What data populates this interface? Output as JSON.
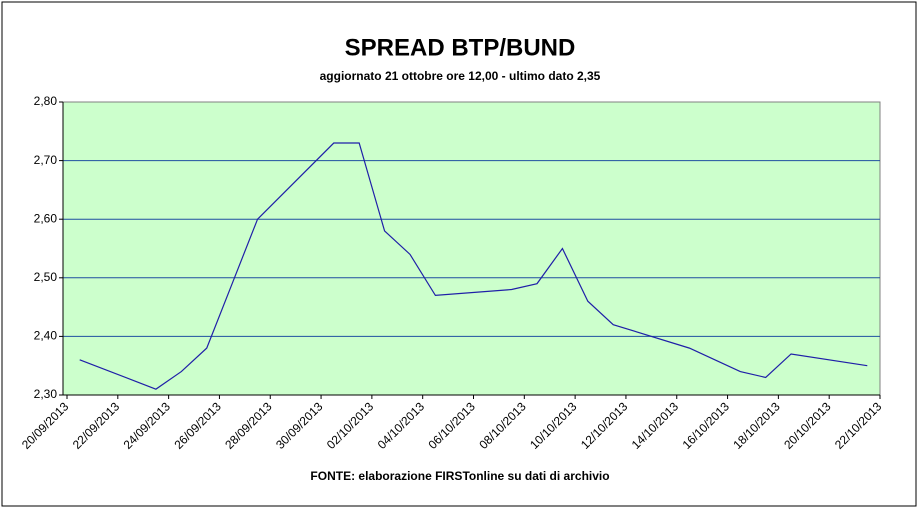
{
  "chart_data": {
    "type": "line",
    "title": "SPREAD BTP/BUND",
    "subtitle": "aggiornato 21 ottobre ore 12,00 - ultimo dato 2,35",
    "footer": "FONTE: elaborazione FIRSTonline su dati di archivio",
    "x": [
      "20/09/2013",
      "23/09/2013",
      "24/09/2013",
      "25/09/2013",
      "26/09/2013",
      "27/09/2013",
      "30/09/2013",
      "01/10/2013",
      "02/10/2013",
      "03/10/2013",
      "04/10/2013",
      "07/10/2013",
      "08/10/2013",
      "09/10/2013",
      "10/10/2013",
      "11/10/2013",
      "14/10/2013",
      "15/10/2013",
      "16/10/2013",
      "17/10/2013",
      "18/10/2013",
      "21/10/2013"
    ],
    "series": [
      {
        "color": "#1f1fa8",
        "values": [
          2.36,
          2.31,
          2.34,
          2.38,
          2.49,
          2.6,
          2.73,
          2.73,
          2.58,
          2.54,
          2.47,
          2.48,
          2.49,
          2.55,
          2.46,
          2.42,
          2.38,
          2.36,
          2.34,
          2.33,
          2.37,
          2.35
        ]
      }
    ],
    "xlim": [
      "20/09/2013",
      "22/10/2013"
    ],
    "xticks": [
      "20/09/2013",
      "22/09/2013",
      "24/09/2013",
      "26/09/2013",
      "28/09/2013",
      "30/09/2013",
      "02/10/2013",
      "04/10/2013",
      "06/10/2013",
      "08/10/2013",
      "10/10/2013",
      "12/10/2013",
      "14/10/2013",
      "16/10/2013",
      "18/10/2013",
      "20/10/2013",
      "22/10/2013"
    ],
    "ylim": [
      2.3,
      2.8
    ],
    "yticks": [
      {
        "value": 2.3,
        "label": "2,30"
      },
      {
        "value": 2.4,
        "label": "2,40"
      },
      {
        "value": 2.5,
        "label": "2,50"
      },
      {
        "value": 2.6,
        "label": "2,60"
      },
      {
        "value": 2.7,
        "label": "2,70"
      },
      {
        "value": 2.8,
        "label": "2,80"
      }
    ],
    "grid": true,
    "background": "#ccffcc"
  }
}
